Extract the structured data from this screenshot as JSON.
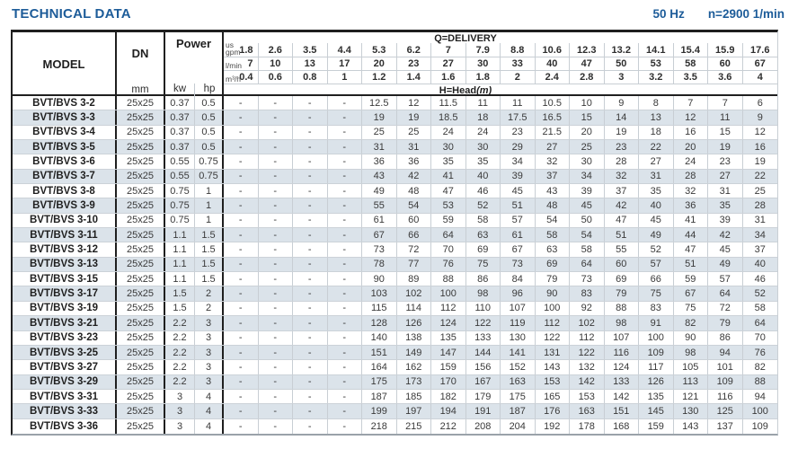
{
  "page": {
    "title": "TECHNICAL DATA",
    "frequency": "50 Hz",
    "speed": "n=2900 1/min"
  },
  "table": {
    "header": {
      "model": "MODEL",
      "dn": "DN",
      "dn_unit": "mm",
      "power": "Power",
      "kw": "kw",
      "hp": "hp",
      "delivery_label": "Q=DELIVERY",
      "head_label": "H=Head",
      "head_unit": "(m)",
      "unit_rows": [
        {
          "label": "us\ngpm",
          "values": [
            "1.8",
            "2.6",
            "3.5",
            "4.4",
            "5.3",
            "6.2",
            "7",
            "7.9",
            "8.8",
            "10.6",
            "12.3",
            "13.2",
            "14.1",
            "15.4",
            "15.9",
            "17.6"
          ]
        },
        {
          "label": "l/min",
          "values": [
            "7",
            "10",
            "13",
            "17",
            "20",
            "23",
            "27",
            "30",
            "33",
            "40",
            "47",
            "50",
            "53",
            "58",
            "60",
            "67"
          ]
        },
        {
          "label": "m³/h",
          "values": [
            "0.4",
            "0.6",
            "0.8",
            "1",
            "1.2",
            "1.4",
            "1.6",
            "1.8",
            "2",
            "2.4",
            "2.8",
            "3",
            "3.2",
            "3.5",
            "3.6",
            "4"
          ]
        }
      ]
    },
    "rows": [
      {
        "model": "BVT/BVS 3-2",
        "dn": "25x25",
        "kw": "0.37",
        "hp": "0.5",
        "heads": [
          "-",
          "-",
          "-",
          "-",
          "12.5",
          "12",
          "11.5",
          "11",
          "11",
          "10.5",
          "10",
          "9",
          "8",
          "7",
          "7",
          "6"
        ]
      },
      {
        "model": "BVT/BVS 3-3",
        "dn": "25x25",
        "kw": "0.37",
        "hp": "0.5",
        "heads": [
          "-",
          "-",
          "-",
          "-",
          "19",
          "19",
          "18.5",
          "18",
          "17.5",
          "16.5",
          "15",
          "14",
          "13",
          "12",
          "11",
          "9"
        ]
      },
      {
        "model": "BVT/BVS 3-4",
        "dn": "25x25",
        "kw": "0.37",
        "hp": "0.5",
        "heads": [
          "-",
          "-",
          "-",
          "-",
          "25",
          "25",
          "24",
          "24",
          "23",
          "21.5",
          "20",
          "19",
          "18",
          "16",
          "15",
          "12"
        ]
      },
      {
        "model": "BVT/BVS 3-5",
        "dn": "25x25",
        "kw": "0.37",
        "hp": "0.5",
        "heads": [
          "-",
          "-",
          "-",
          "-",
          "31",
          "31",
          "30",
          "30",
          "29",
          "27",
          "25",
          "23",
          "22",
          "20",
          "19",
          "16"
        ]
      },
      {
        "model": "BVT/BVS 3-6",
        "dn": "25x25",
        "kw": "0.55",
        "hp": "0.75",
        "heads": [
          "-",
          "-",
          "-",
          "-",
          "36",
          "36",
          "35",
          "35",
          "34",
          "32",
          "30",
          "28",
          "27",
          "24",
          "23",
          "19"
        ]
      },
      {
        "model": "BVT/BVS 3-7",
        "dn": "25x25",
        "kw": "0.55",
        "hp": "0.75",
        "heads": [
          "-",
          "-",
          "-",
          "-",
          "43",
          "42",
          "41",
          "40",
          "39",
          "37",
          "34",
          "32",
          "31",
          "28",
          "27",
          "22"
        ]
      },
      {
        "model": "BVT/BVS 3-8",
        "dn": "25x25",
        "kw": "0.75",
        "hp": "1",
        "heads": [
          "-",
          "-",
          "-",
          "-",
          "49",
          "48",
          "47",
          "46",
          "45",
          "43",
          "39",
          "37",
          "35",
          "32",
          "31",
          "25"
        ]
      },
      {
        "model": "BVT/BVS 3-9",
        "dn": "25x25",
        "kw": "0.75",
        "hp": "1",
        "heads": [
          "-",
          "-",
          "-",
          "-",
          "55",
          "54",
          "53",
          "52",
          "51",
          "48",
          "45",
          "42",
          "40",
          "36",
          "35",
          "28"
        ]
      },
      {
        "model": "BVT/BVS 3-10",
        "dn": "25x25",
        "kw": "0.75",
        "hp": "1",
        "heads": [
          "-",
          "-",
          "-",
          "-",
          "61",
          "60",
          "59",
          "58",
          "57",
          "54",
          "50",
          "47",
          "45",
          "41",
          "39",
          "31"
        ]
      },
      {
        "model": "BVT/BVS 3-11",
        "dn": "25x25",
        "kw": "1.1",
        "hp": "1.5",
        "heads": [
          "-",
          "-",
          "-",
          "-",
          "67",
          "66",
          "64",
          "63",
          "61",
          "58",
          "54",
          "51",
          "49",
          "44",
          "42",
          "34"
        ]
      },
      {
        "model": "BVT/BVS 3-12",
        "dn": "25x25",
        "kw": "1.1",
        "hp": "1.5",
        "heads": [
          "-",
          "-",
          "-",
          "-",
          "73",
          "72",
          "70",
          "69",
          "67",
          "63",
          "58",
          "55",
          "52",
          "47",
          "45",
          "37"
        ]
      },
      {
        "model": "BVT/BVS 3-13",
        "dn": "25x25",
        "kw": "1.1",
        "hp": "1.5",
        "heads": [
          "-",
          "-",
          "-",
          "-",
          "78",
          "77",
          "76",
          "75",
          "73",
          "69",
          "64",
          "60",
          "57",
          "51",
          "49",
          "40"
        ]
      },
      {
        "model": "BVT/BVS 3-15",
        "dn": "25x25",
        "kw": "1.1",
        "hp": "1.5",
        "heads": [
          "-",
          "-",
          "-",
          "-",
          "90",
          "89",
          "88",
          "86",
          "84",
          "79",
          "73",
          "69",
          "66",
          "59",
          "57",
          "46"
        ]
      },
      {
        "model": "BVT/BVS 3-17",
        "dn": "25x25",
        "kw": "1.5",
        "hp": "2",
        "heads": [
          "-",
          "-",
          "-",
          "-",
          "103",
          "102",
          "100",
          "98",
          "96",
          "90",
          "83",
          "79",
          "75",
          "67",
          "64",
          "52"
        ]
      },
      {
        "model": "BVT/BVS 3-19",
        "dn": "25x25",
        "kw": "1.5",
        "hp": "2",
        "heads": [
          "-",
          "-",
          "-",
          "-",
          "115",
          "114",
          "112",
          "110",
          "107",
          "100",
          "92",
          "88",
          "83",
          "75",
          "72",
          "58"
        ]
      },
      {
        "model": "BVT/BVS 3-21",
        "dn": "25x25",
        "kw": "2.2",
        "hp": "3",
        "heads": [
          "-",
          "-",
          "-",
          "-",
          "128",
          "126",
          "124",
          "122",
          "119",
          "112",
          "102",
          "98",
          "91",
          "82",
          "79",
          "64"
        ]
      },
      {
        "model": "BVT/BVS 3-23",
        "dn": "25x25",
        "kw": "2.2",
        "hp": "3",
        "heads": [
          "-",
          "-",
          "-",
          "-",
          "140",
          "138",
          "135",
          "133",
          "130",
          "122",
          "112",
          "107",
          "100",
          "90",
          "86",
          "70"
        ]
      },
      {
        "model": "BVT/BVS 3-25",
        "dn": "25x25",
        "kw": "2.2",
        "hp": "3",
        "heads": [
          "-",
          "-",
          "-",
          "-",
          "151",
          "149",
          "147",
          "144",
          "141",
          "131",
          "122",
          "116",
          "109",
          "98",
          "94",
          "76"
        ]
      },
      {
        "model": "BVT/BVS 3-27",
        "dn": "25x25",
        "kw": "2.2",
        "hp": "3",
        "heads": [
          "-",
          "-",
          "-",
          "-",
          "164",
          "162",
          "159",
          "156",
          "152",
          "143",
          "132",
          "124",
          "117",
          "105",
          "101",
          "82"
        ]
      },
      {
        "model": "BVT/BVS 3-29",
        "dn": "25x25",
        "kw": "2.2",
        "hp": "3",
        "heads": [
          "-",
          "-",
          "-",
          "-",
          "175",
          "173",
          "170",
          "167",
          "163",
          "153",
          "142",
          "133",
          "126",
          "113",
          "109",
          "88"
        ]
      },
      {
        "model": "BVT/BVS 3-31",
        "dn": "25x25",
        "kw": "3",
        "hp": "4",
        "heads": [
          "-",
          "-",
          "-",
          "-",
          "187",
          "185",
          "182",
          "179",
          "175",
          "165",
          "153",
          "142",
          "135",
          "121",
          "116",
          "94"
        ]
      },
      {
        "model": "BVT/BVS 3-33",
        "dn": "25x25",
        "kw": "3",
        "hp": "4",
        "heads": [
          "-",
          "-",
          "-",
          "-",
          "199",
          "197",
          "194",
          "191",
          "187",
          "176",
          "163",
          "151",
          "145",
          "130",
          "125",
          "100"
        ]
      },
      {
        "model": "BVT/BVS 3-36",
        "dn": "25x25",
        "kw": "3",
        "hp": "4",
        "heads": [
          "-",
          "-",
          "-",
          "-",
          "218",
          "215",
          "212",
          "208",
          "204",
          "192",
          "178",
          "168",
          "159",
          "143",
          "137",
          "109"
        ]
      }
    ]
  }
}
